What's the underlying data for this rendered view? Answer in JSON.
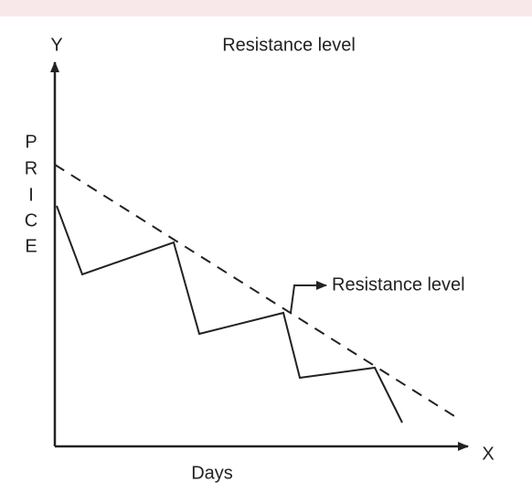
{
  "title": "Resistance level",
  "y_axis": {
    "label": "Y",
    "name_letters": [
      "P",
      "R",
      "I",
      "C",
      "E"
    ]
  },
  "x_axis": {
    "label": "X",
    "name": "Days"
  },
  "annotation": "Resistance level"
}
